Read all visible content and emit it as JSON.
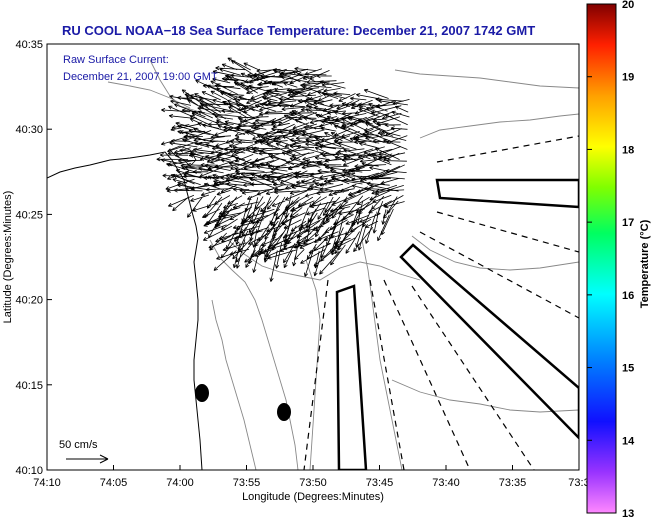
{
  "chart_data": {
    "type": "quiver-map",
    "title": "RU COOL  NOAA−18  Sea Surface Temperature:  December 21, 2007 1742 GMT",
    "overlay_label_line1": "Raw Surface Current:",
    "overlay_label_line2": "December 21, 2007 19:00 GMT",
    "xlabel": "Longitude (Degrees:Minutes)",
    "ylabel": "Latitude (Degrees:Minutes)",
    "x_ticks": [
      "74:10",
      "74:05",
      "74:00",
      "73:55",
      "73:50",
      "73:45",
      "73:40",
      "73:35",
      "73:3"
    ],
    "y_ticks": [
      "40:10",
      "40:15",
      "40:20",
      "40:25",
      "40:30",
      "40:35"
    ],
    "xlim_minutes_west": [
      10,
      30
    ],
    "ylim_minutes_north": [
      10,
      35
    ],
    "colorbar": {
      "title": "Temperature (°C)",
      "ticks": [
        "13",
        "14",
        "15",
        "16",
        "17",
        "18",
        "19",
        "20"
      ],
      "range": [
        13,
        20
      ]
    },
    "scale_label": "50 cm/s",
    "markers": [
      {
        "lon_min": 9.0,
        "lat_min": 14.6
      },
      {
        "lon_min": 7.3,
        "lat_min": 13.5
      }
    ],
    "current_field": {
      "lon_range_min": [
        8,
        12.5
      ],
      "lat_range_min": [
        21,
        32
      ],
      "dominant_flow": "westward, fanning southwest near the coast"
    }
  }
}
